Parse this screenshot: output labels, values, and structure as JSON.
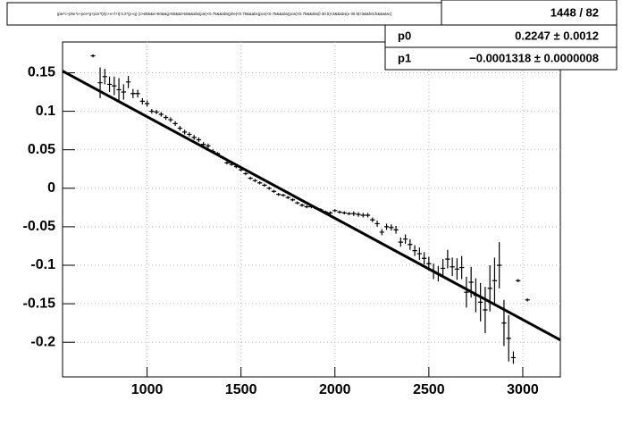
{
  "chart_data": {
    "type": "errorbar",
    "title": "(pie*c+phe*e+pce*g+pce*t)/(c+e+f+t):0.2*(p+q) {c>50&&e>50&&g>50&&t>50&&abs(pie)<0.75&&abs(phe)<0.75&&abs(pce)<0.75&&abs(pcw)<0.75&&abs(l-30.5)<3&&abs(e-30.5)<3&&fetch&&wtac}",
    "stats": {
      "entries": "1448 / 82",
      "params": [
        {
          "name": "p0",
          "value": 0.2247,
          "label": "0.2247 ± 0.0012"
        },
        {
          "name": "p1",
          "value": -0.0001318,
          "label": "−0.0001318 ± 0.0000008"
        }
      ]
    },
    "xlim": [
      550,
      3200
    ],
    "xticks": [
      1000,
      1500,
      2000,
      2500,
      3000
    ],
    "ylim": [
      -0.245,
      0.19
    ],
    "yticks": [
      0.15,
      0.1,
      0.05,
      0,
      -0.05,
      -0.1,
      -0.15,
      -0.2
    ],
    "grid": true,
    "series": [
      {
        "color": "#000000",
        "x": [
          712,
          750,
          775,
          800,
          825,
          850,
          875,
          900,
          925,
          950,
          975,
          1000,
          1025,
          1050,
          1075,
          1100,
          1125,
          1150,
          1175,
          1200,
          1225,
          1250,
          1275,
          1300,
          1325,
          1350,
          1375,
          1400,
          1425,
          1450,
          1475,
          1500,
          1525,
          1550,
          1575,
          1600,
          1625,
          1650,
          1675,
          1700,
          1725,
          1750,
          1775,
          1800,
          1825,
          1850,
          1875,
          1900,
          1925,
          1950,
          1975,
          2000,
          2025,
          2050,
          2075,
          2100,
          2125,
          2150,
          2175,
          2200,
          2225,
          2250,
          2275,
          2300,
          2325,
          2350,
          2375,
          2400,
          2425,
          2450,
          2475,
          2500,
          2525,
          2550,
          2575,
          2600,
          2625,
          2650,
          2675,
          2700,
          2725,
          2750,
          2775,
          2800,
          2825,
          2850,
          2875,
          2900,
          2925,
          2950,
          2975,
          3025
        ],
        "values": [
          0.172,
          0.137,
          0.145,
          0.135,
          0.133,
          0.128,
          0.125,
          0.138,
          0.123,
          0.123,
          0.113,
          0.11,
          0.1,
          0.099,
          0.096,
          0.092,
          0.089,
          0.084,
          0.078,
          0.073,
          0.07,
          0.066,
          0.063,
          0.057,
          0.055,
          0.048,
          0.045,
          0.04,
          0.033,
          0.031,
          0.028,
          0.024,
          0.019,
          0.013,
          0.01,
          0.007,
          0.004,
          0.0,
          -0.004,
          -0.008,
          -0.009,
          -0.012,
          -0.015,
          -0.019,
          -0.022,
          -0.024,
          -0.024,
          -0.026,
          -0.028,
          -0.031,
          -0.032,
          -0.029,
          -0.031,
          -0.032,
          -0.033,
          -0.033,
          -0.034,
          -0.035,
          -0.035,
          -0.041,
          -0.046,
          -0.057,
          -0.05,
          -0.051,
          -0.054,
          -0.07,
          -0.066,
          -0.073,
          -0.081,
          -0.085,
          -0.091,
          -0.098,
          -0.108,
          -0.111,
          -0.104,
          -0.092,
          -0.102,
          -0.105,
          -0.103,
          -0.135,
          -0.122,
          -0.139,
          -0.148,
          -0.158,
          -0.13,
          -0.12,
          -0.1,
          -0.175,
          -0.195,
          -0.22,
          -0.12,
          -0.145
        ],
        "errors": [
          0.002,
          0.02,
          0.01,
          0.01,
          0.012,
          0.015,
          0.01,
          0.008,
          0.006,
          0.005,
          0.004,
          0.004,
          0.003,
          0.003,
          0.003,
          0.003,
          0.003,
          0.003,
          0.003,
          0.003,
          0.003,
          0.003,
          0.003,
          0.003,
          0.003,
          0.003,
          0.002,
          0.002,
          0.002,
          0.002,
          0.002,
          0.002,
          0.002,
          0.002,
          0.002,
          0.002,
          0.002,
          0.002,
          0.002,
          0.002,
          0.002,
          0.002,
          0.002,
          0.002,
          0.002,
          0.002,
          0.002,
          0.002,
          0.002,
          0.002,
          0.002,
          0.002,
          0.002,
          0.002,
          0.002,
          0.003,
          0.003,
          0.003,
          0.003,
          0.003,
          0.004,
          0.004,
          0.004,
          0.004,
          0.005,
          0.006,
          0.006,
          0.007,
          0.007,
          0.008,
          0.008,
          0.009,
          0.01,
          0.01,
          0.012,
          0.012,
          0.012,
          0.014,
          0.015,
          0.02,
          0.02,
          0.022,
          0.025,
          0.03,
          0.03,
          0.03,
          0.03,
          0.03,
          0.03,
          0.008,
          0.002,
          0.002
        ]
      }
    ]
  }
}
